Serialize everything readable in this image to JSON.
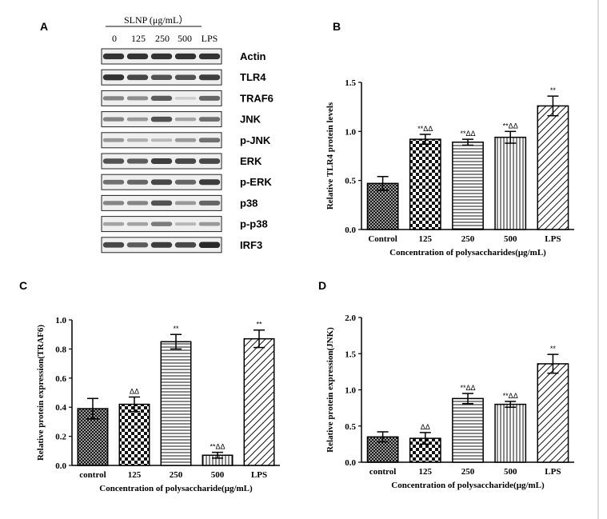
{
  "panel_a": {
    "letter": "A",
    "header": "SLNP (μg/mL）",
    "lanes": [
      "0",
      "125",
      "250",
      "500",
      "LPS"
    ],
    "rows": [
      "Actin",
      "TLR4",
      "TRAF6",
      "JNK",
      "p-JNK",
      "ERK",
      "p-ERK",
      "p38",
      "p-p38",
      "IRF3"
    ],
    "band_intensity": [
      [
        0.85,
        0.85,
        0.85,
        0.85,
        0.85
      ],
      [
        0.85,
        0.75,
        0.7,
        0.7,
        0.8
      ],
      [
        0.45,
        0.4,
        0.65,
        0.1,
        0.6
      ],
      [
        0.45,
        0.35,
        0.7,
        0.3,
        0.55
      ],
      [
        0.35,
        0.25,
        0.2,
        0.35,
        0.55
      ],
      [
        0.7,
        0.65,
        0.8,
        0.75,
        0.75
      ],
      [
        0.55,
        0.6,
        0.75,
        0.6,
        0.8
      ],
      [
        0.45,
        0.45,
        0.7,
        0.35,
        0.6
      ],
      [
        0.3,
        0.3,
        0.5,
        0.2,
        0.35
      ],
      [
        0.75,
        0.65,
        0.8,
        0.75,
        0.9
      ]
    ]
  },
  "chart_data": [
    {
      "panel": "B",
      "type": "bar",
      "categories": [
        "Control",
        "125",
        "250",
        "500",
        "LPS"
      ],
      "values": [
        0.47,
        0.92,
        0.89,
        0.94,
        1.26
      ],
      "errors": [
        0.07,
        0.05,
        0.03,
        0.06,
        0.1
      ],
      "patterns": [
        "crosshatch",
        "checker",
        "hlines",
        "vlines",
        "diag"
      ],
      "significance": [
        "",
        "**ΔΔ",
        "**ΔΔ",
        "**ΔΔ",
        "**"
      ],
      "xlabel": "Concentration of polysaccharides(μg/mL)",
      "ylabel": "Relative TLR4 protein levels",
      "ylim": [
        0,
        1.5
      ],
      "yticks": [
        "0.0",
        "0.5",
        "1.0",
        "1.5"
      ]
    },
    {
      "panel": "C",
      "type": "bar",
      "categories": [
        "control",
        "125",
        "250",
        "500",
        "LPS"
      ],
      "values": [
        0.39,
        0.42,
        0.85,
        0.07,
        0.87
      ],
      "errors": [
        0.07,
        0.05,
        0.05,
        0.02,
        0.06
      ],
      "patterns": [
        "crosshatch",
        "checker",
        "hlines",
        "vlines",
        "diag"
      ],
      "significance": [
        "",
        "ΔΔ",
        "**",
        "**ΔΔ",
        "**"
      ],
      "xlabel": "Concentration of polysaccharide(μg/mL)",
      "ylabel": "Relative protein expression(TRAF6)",
      "ylim": [
        0,
        1
      ],
      "yticks": [
        "0.0",
        "0.2",
        "0.4",
        "0.6",
        "0.8",
        "1.0"
      ]
    },
    {
      "panel": "D",
      "type": "bar",
      "categories": [
        "control",
        "125",
        "250",
        "500",
        "LPS"
      ],
      "values": [
        0.35,
        0.33,
        0.88,
        0.8,
        1.36
      ],
      "errors": [
        0.07,
        0.08,
        0.07,
        0.04,
        0.13
      ],
      "patterns": [
        "crosshatch",
        "checker",
        "hlines",
        "vlines",
        "diag"
      ],
      "significance": [
        "",
        "ΔΔ",
        "**ΔΔ",
        "**ΔΔ",
        "**"
      ],
      "xlabel": "Concentration of polysaccharide(μg/mL)",
      "ylabel": "Relative protein expression(JNK)",
      "ylim": [
        0,
        2
      ],
      "yticks": [
        "0.0",
        "0.5",
        "1.0",
        "1.5",
        "2.0"
      ]
    }
  ]
}
